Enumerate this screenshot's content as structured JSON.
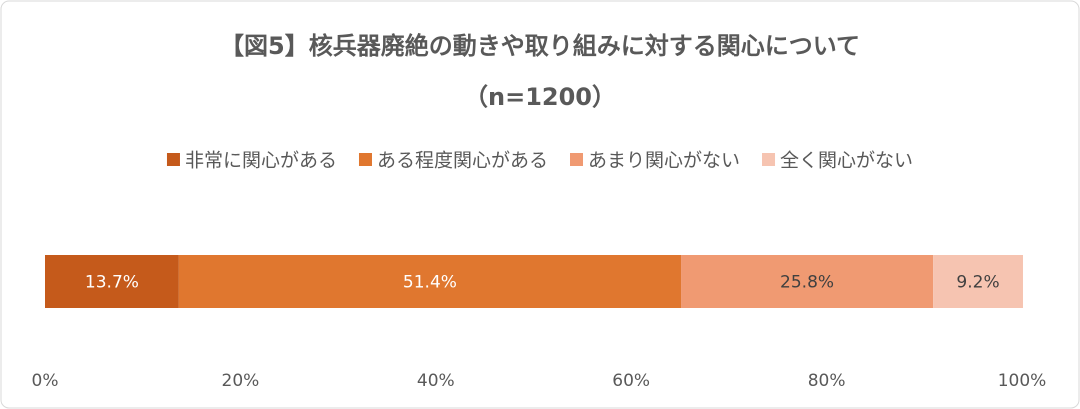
{
  "chart_data": {
    "type": "bar",
    "orientation": "horizontal",
    "stacked": true,
    "title": "【図5】核兵器廃絶の動きや取り組みに対する関心について",
    "subtitle": "（n=1200）",
    "categories": [
      null
    ],
    "series": [
      {
        "name": "非常に関心がある",
        "color": "#c55a1b",
        "values": [
          13.7
        ],
        "value_labels": [
          "13.7%"
        ]
      },
      {
        "name": "ある程度関心がある",
        "color": "#e0772f",
        "values": [
          51.4
        ],
        "value_labels": [
          "51.4%"
        ]
      },
      {
        "name": "あまり関心がない",
        "color": "#f09a72",
        "values": [
          25.8
        ],
        "value_labels": [
          "25.8%"
        ]
      },
      {
        "name": "全く関心がない",
        "color": "#f6c4b1",
        "values": [
          9.2
        ],
        "value_labels": [
          "9.2%"
        ]
      }
    ],
    "xlim": [
      0,
      100
    ],
    "xticks": [
      {
        "value": 0,
        "label": "0%"
      },
      {
        "value": 20,
        "label": "20%"
      },
      {
        "value": 40,
        "label": "40%"
      },
      {
        "value": 60,
        "label": "60%"
      },
      {
        "value": 80,
        "label": "80%"
      },
      {
        "value": 100,
        "label": "100%"
      }
    ],
    "legend": "top"
  }
}
